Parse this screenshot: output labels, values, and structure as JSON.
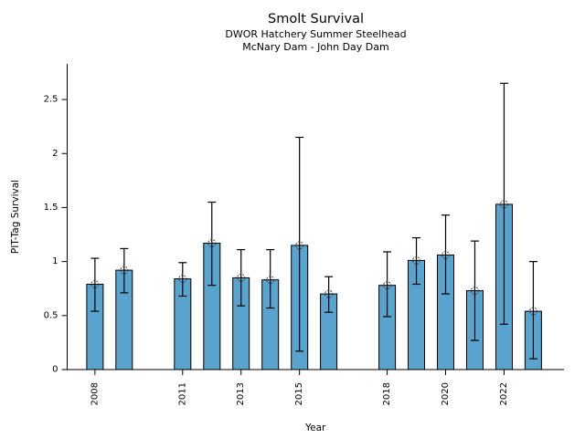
{
  "header": {
    "title": "Smolt Survival",
    "subtitle1": "DWOR Hatchery Summer Steelhead",
    "subtitle2": "McNary Dam - John Day Dam"
  },
  "chart_data": {
    "type": "bar",
    "title": "Smolt Survival",
    "subtitle": [
      "DWOR Hatchery Summer Steelhead",
      "McNary Dam - John Day Dam"
    ],
    "xlabel": "Year",
    "ylabel": "PIT-Tag Survival",
    "x": [
      2008,
      2009,
      2011,
      2012,
      2013,
      2014,
      2015,
      2016,
      2018,
      2019,
      2020,
      2021,
      2022,
      2023
    ],
    "values": [
      0.79,
      0.92,
      0.84,
      1.17,
      0.85,
      0.83,
      1.15,
      0.7,
      0.78,
      1.01,
      1.06,
      0.73,
      1.53,
      0.54
    ],
    "error_low": [
      0.54,
      0.71,
      0.68,
      0.78,
      0.59,
      0.57,
      0.17,
      0.53,
      0.49,
      0.79,
      0.7,
      0.27,
      0.42,
      0.1
    ],
    "error_high": [
      1.03,
      1.12,
      0.99,
      1.55,
      1.11,
      1.11,
      2.15,
      0.86,
      1.09,
      1.22,
      1.43,
      1.19,
      2.65,
      1.0
    ],
    "xticks": [
      2008,
      2011,
      2013,
      2015,
      2018,
      2020,
      2022
    ],
    "ytick_labels": [
      "0",
      "0.5",
      "1",
      "1.5",
      "2",
      "2.5"
    ],
    "ytick_values": [
      0,
      0.5,
      1,
      1.5,
      2,
      2.5
    ],
    "xlim": [
      2007.05,
      2024.05
    ],
    "ylim": [
      0,
      2.83
    ],
    "grid": false,
    "legend": null,
    "bar_color": "#59a3cf",
    "bar_edge_color": "#000000",
    "error_bar_color": "#000000",
    "marker_style": "dashed-open-circle",
    "marker_edge_color": "#404040"
  }
}
